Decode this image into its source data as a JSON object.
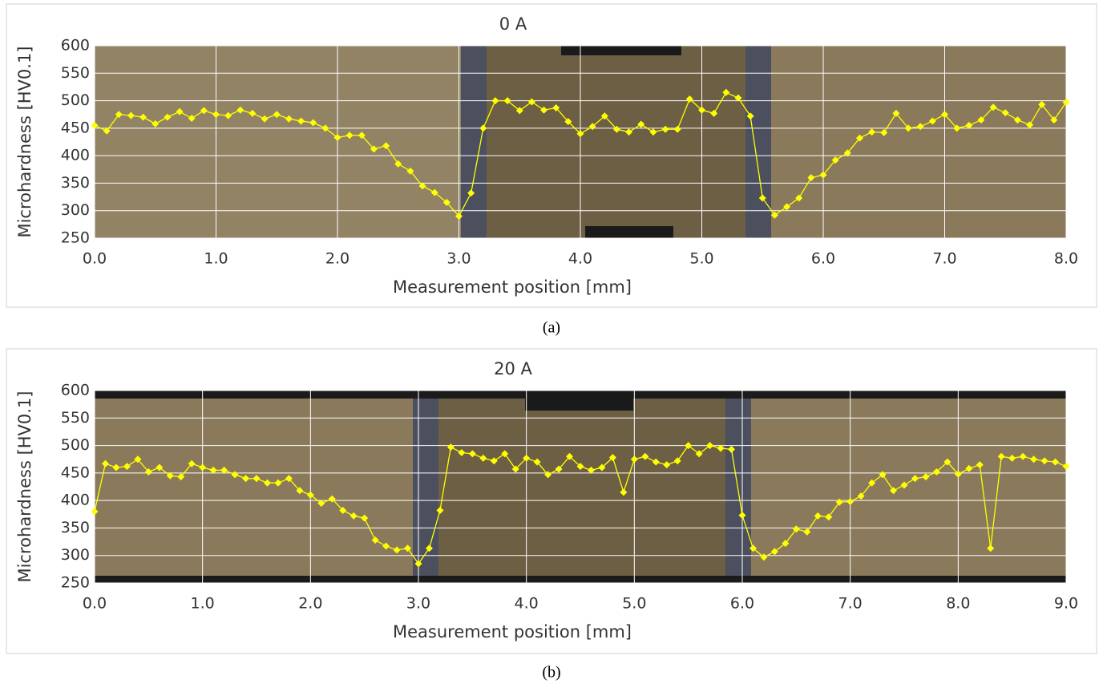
{
  "chart_data": [
    {
      "type": "line",
      "title": "0 A",
      "caption": "(a)",
      "x_label": "Measurement position [mm]",
      "y_label": "Microhardness [HV0.1]",
      "color": "#ffff00",
      "marker": "diamond",
      "grid": true,
      "x": [
        0,
        0.1,
        0.2,
        0.3,
        0.4,
        0.5,
        0.6,
        0.7,
        0.8,
        0.9,
        1,
        1.1,
        1.2,
        1.3,
        1.4,
        1.5,
        1.6,
        1.7,
        1.8,
        1.9,
        2,
        2.1,
        2.2,
        2.3,
        2.4,
        2.5,
        2.6,
        2.7,
        2.8,
        2.9,
        3,
        3.1,
        3.2,
        3.3,
        3.4,
        3.5,
        3.6,
        3.7,
        3.8,
        3.9,
        4,
        4.1,
        4.2,
        4.3,
        4.4,
        4.5,
        4.6,
        4.7,
        4.8,
        4.9,
        5,
        5.1,
        5.2,
        5.3,
        5.4,
        5.5,
        5.6,
        5.7,
        5.8,
        5.9,
        6,
        6.1,
        6.2,
        6.3,
        6.4,
        6.5,
        6.6,
        6.7,
        6.8,
        6.9,
        7,
        7.1,
        7.2,
        7.3,
        7.4,
        7.5,
        7.6,
        7.7,
        7.8,
        7.9,
        8
      ],
      "values": [
        455,
        445,
        475,
        473,
        470,
        458,
        470,
        480,
        468,
        482,
        475,
        473,
        483,
        477,
        467,
        475,
        467,
        463,
        460,
        450,
        433,
        437,
        437,
        412,
        418,
        385,
        372,
        345,
        333,
        315,
        290,
        332,
        450,
        500,
        500,
        482,
        498,
        483,
        487,
        462,
        440,
        453,
        472,
        448,
        443,
        457,
        443,
        448,
        448,
        503,
        483,
        477,
        515,
        505,
        472,
        323,
        292,
        307,
        323,
        360,
        365,
        392,
        405,
        432,
        443,
        442,
        477,
        450,
        453,
        463,
        475,
        450,
        455,
        465,
        488,
        478,
        465,
        456,
        493,
        465,
        497
      ],
      "xlim": [
        0,
        8
      ],
      "ylim": [
        250,
        600
      ],
      "xticks": [
        {
          "value": 0,
          "label": "0.0"
        },
        {
          "value": 1,
          "label": "1.0"
        },
        {
          "value": 2,
          "label": "2.0"
        },
        {
          "value": 3,
          "label": "3.0"
        },
        {
          "value": 4,
          "label": "4.0"
        },
        {
          "value": 5,
          "label": "5.0"
        },
        {
          "value": 6,
          "label": "6.0"
        },
        {
          "value": 7,
          "label": "7.0"
        },
        {
          "value": 8,
          "label": "8.0"
        }
      ],
      "yticks": [
        250,
        300,
        350,
        400,
        450,
        500,
        550,
        600
      ]
    },
    {
      "type": "line",
      "title": "20 A",
      "caption": "(b)",
      "x_label": "Measurement position [mm]",
      "y_label": "Microhardness [HV0.1]",
      "color": "#ffff00",
      "marker": "diamond",
      "grid": true,
      "x": [
        0,
        0.1,
        0.2,
        0.3,
        0.4,
        0.5,
        0.6,
        0.7,
        0.8,
        0.9,
        1,
        1.1,
        1.2,
        1.3,
        1.4,
        1.5,
        1.6,
        1.7,
        1.8,
        1.9,
        2,
        2.1,
        2.2,
        2.3,
        2.4,
        2.5,
        2.6,
        2.7,
        2.8,
        2.9,
        3,
        3.1,
        3.2,
        3.3,
        3.4,
        3.5,
        3.6,
        3.7,
        3.8,
        3.9,
        4,
        4.1,
        4.2,
        4.3,
        4.4,
        4.5,
        4.6,
        4.7,
        4.8,
        4.9,
        5,
        5.1,
        5.2,
        5.3,
        5.4,
        5.5,
        5.6,
        5.7,
        5.8,
        5.9,
        6,
        6.1,
        6.2,
        6.3,
        6.4,
        6.5,
        6.6,
        6.7,
        6.8,
        6.9,
        7,
        7.1,
        7.2,
        7.3,
        7.4,
        7.5,
        7.6,
        7.7,
        7.8,
        7.9,
        8,
        8.1,
        8.2,
        8.3,
        8.4,
        8.5,
        8.6,
        8.7,
        8.8,
        8.9,
        9
      ],
      "values": [
        380,
        467,
        460,
        462,
        475,
        452,
        460,
        445,
        443,
        467,
        460,
        455,
        455,
        447,
        440,
        440,
        432,
        432,
        440,
        418,
        410,
        395,
        403,
        382,
        372,
        368,
        328,
        317,
        310,
        313,
        285,
        313,
        382,
        497,
        487,
        485,
        477,
        472,
        485,
        457,
        477,
        470,
        447,
        457,
        480,
        462,
        455,
        460,
        478,
        415,
        475,
        480,
        470,
        465,
        472,
        500,
        485,
        500,
        495,
        493,
        373,
        313,
        297,
        307,
        322,
        348,
        343,
        372,
        370,
        397,
        398,
        408,
        432,
        447,
        418,
        428,
        440,
        443,
        452,
        470,
        448,
        458,
        465,
        313,
        480,
        477,
        480,
        475,
        472,
        470,
        462
      ],
      "xlim": [
        0,
        9
      ],
      "ylim": [
        250,
        600
      ],
      "xticks": [
        {
          "value": 0,
          "label": "0.0"
        },
        {
          "value": 1,
          "label": "1.0"
        },
        {
          "value": 2,
          "label": "2.0"
        },
        {
          "value": 3,
          "label": "3.0"
        },
        {
          "value": 4,
          "label": "4.0"
        },
        {
          "value": 5,
          "label": "5.0"
        },
        {
          "value": 6,
          "label": "6.0"
        },
        {
          "value": 7,
          "label": "7.0"
        },
        {
          "value": 8,
          "label": "8.0"
        },
        {
          "value": 9,
          "label": "9.0"
        }
      ],
      "yticks": [
        250,
        300,
        350,
        400,
        450,
        500,
        550,
        600
      ]
    }
  ]
}
